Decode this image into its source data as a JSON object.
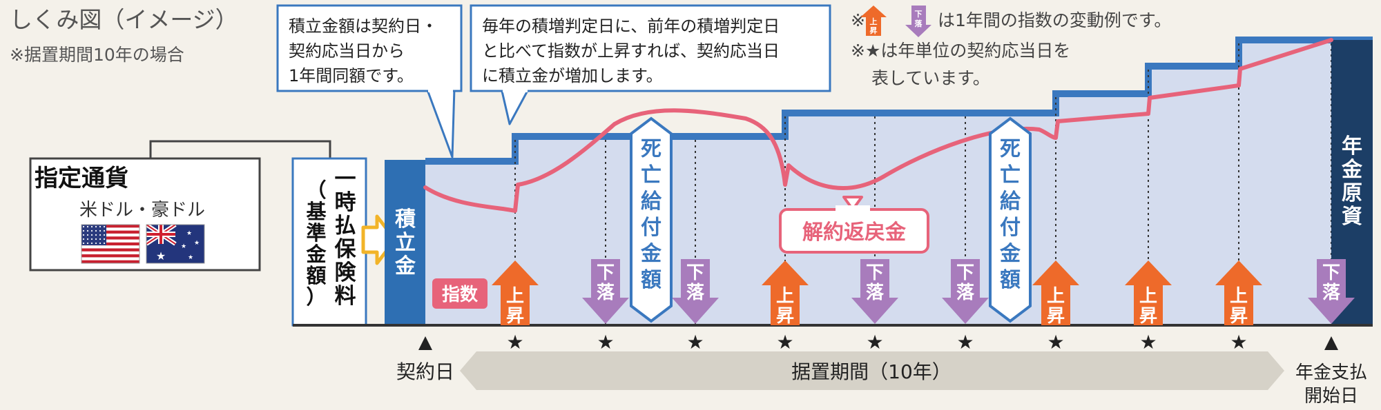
{
  "title": "しくみ図（イメージ）",
  "subtitle": "※据置期間10年の場合",
  "notes": {
    "line1_prefix": "※",
    "line1_suffix": "は1年間の指数の変動例です。",
    "line2": "※★は年単位の契約応当日を",
    "line3": "表しています。"
  },
  "callouts": {
    "fixed_amount": [
      "積立金額は契約日・",
      "契約応当日から",
      "1年間同額です。"
    ],
    "increase_rule": [
      "毎年の積増判定日に、前年の積増判定日",
      "と比べて指数が上昇すれば、契約応当日",
      "に積立金が増加します。"
    ]
  },
  "currency": {
    "title": "指定通貨",
    "options": "米ドル・豪ドル"
  },
  "lump_sum": {
    "main": [
      "一",
      "時",
      "払",
      "保",
      "険",
      "料"
    ],
    "sub": [
      "（",
      "基",
      "準",
      "金",
      "額",
      "）"
    ]
  },
  "labels": {
    "reserve": [
      "積",
      "立",
      "金"
    ],
    "index": "指数",
    "death_benefit": [
      "死",
      "亡",
      "給",
      "付",
      "金",
      "額"
    ],
    "surrender": "解約返戻金",
    "annuity": [
      "年",
      "金",
      "原",
      "資"
    ],
    "up": [
      "上",
      "昇"
    ],
    "down": [
      "下",
      "落"
    ],
    "contract_day": "契約日",
    "deferral": "据置期間（10年）",
    "pay_start": [
      "年金支払",
      "開始日"
    ],
    "star": "★"
  },
  "years": [
    {
      "n": 1,
      "dir": "up"
    },
    {
      "n": 2,
      "dir": "down"
    },
    {
      "n": 3,
      "dir": "down"
    },
    {
      "n": 4,
      "dir": "up"
    },
    {
      "n": 5,
      "dir": "down"
    },
    {
      "n": 6,
      "dir": "down"
    },
    {
      "n": 7,
      "dir": "up"
    },
    {
      "n": 8,
      "dir": "up"
    },
    {
      "n": 9,
      "dir": "up"
    },
    {
      "n": 10,
      "dir": "down"
    }
  ],
  "colors": {
    "background": "#f4f1ea",
    "step_blue": "#3a78bf",
    "area_fill": "#d4dcee",
    "dark_blue": "#1c3e66",
    "reserve_blue": "#2e6fb3",
    "pink": "#e7637a",
    "up_orange": "#ee6a2a",
    "down_purple": "#a87cbc",
    "arrow_yellow": "#f2b428",
    "gray_band": "#d6d2c8"
  }
}
